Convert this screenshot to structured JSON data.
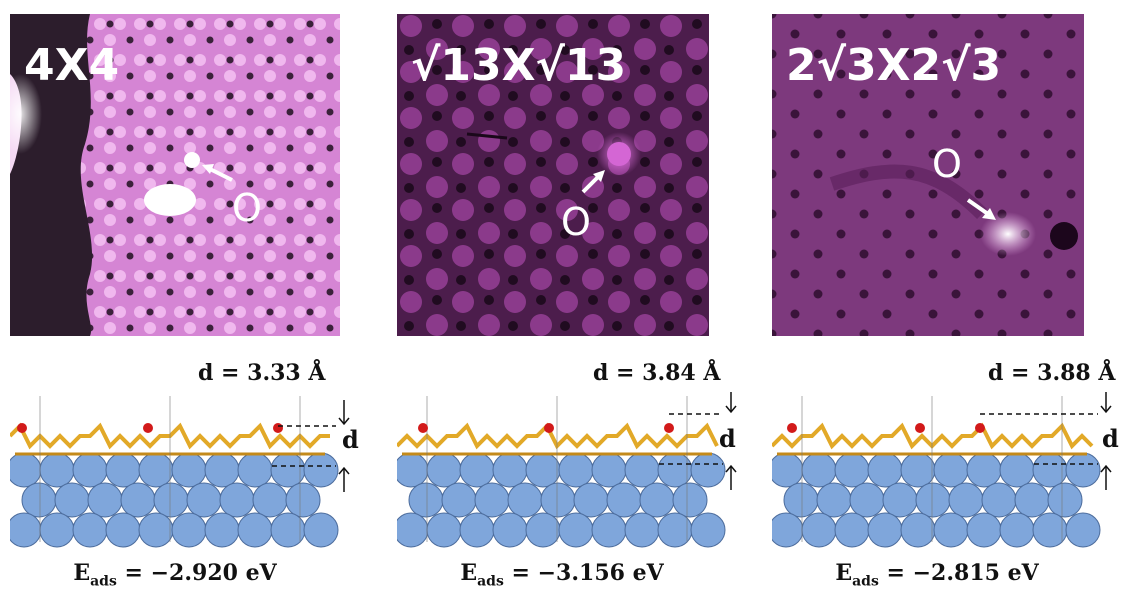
{
  "panels": [
    {
      "id": "4x4",
      "stm_label": "4X4",
      "o_label": "O",
      "d_label": "d = 3.33 Å",
      "d_symbol": "d",
      "eads_prefix": "E",
      "eads_sub": "ads",
      "eads_value": " = −2.920 eV",
      "colors": {
        "bg": "#d77fd7",
        "dark": "#2a1a2a",
        "bright": "#f4c8f2"
      }
    },
    {
      "id": "sqrt13",
      "stm_label": "√13X√13",
      "o_label": "O",
      "d_label": "d = 3.84 Å",
      "d_symbol": "d",
      "eads_prefix": "E",
      "eads_sub": "ads",
      "eads_value": " = −3.156 eV",
      "colors": {
        "bg": "#4e1e4e",
        "dark": "#1e0a1e",
        "bright": "#b651b6"
      }
    },
    {
      "id": "2sqrt3",
      "stm_label": "2√3X2√3",
      "o_label": "O",
      "d_label": "d = 3.88 Å",
      "d_symbol": "d",
      "eads_prefix": "E",
      "eads_sub": "ads",
      "eads_value": " = −2.815 eV",
      "colors": {
        "bg": "#7e3a7e",
        "dark": "#2a0f2a",
        "bright": "#f2b9f2"
      }
    }
  ],
  "atom_colors": {
    "substrate": "#7fa6db",
    "silicene": "#e2a928",
    "oxygen": "#d21a1a"
  }
}
